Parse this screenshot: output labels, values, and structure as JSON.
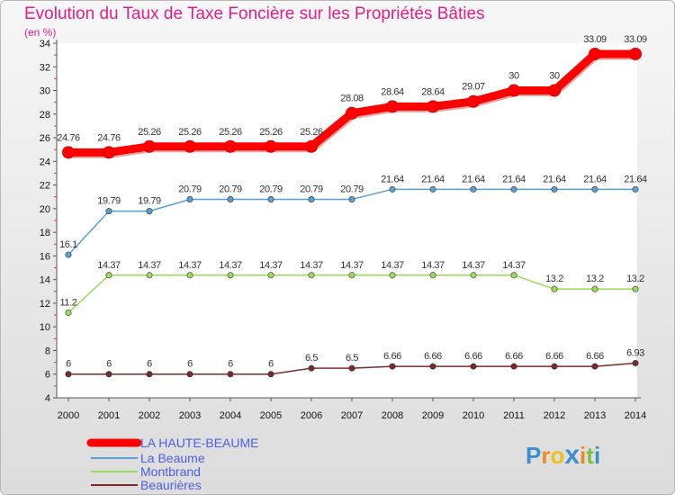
{
  "chart_data": {
    "type": "line",
    "title": "Evolution du Taux de Taxe Foncière sur les Propriétés Bâties",
    "ylabel": "(en %)",
    "xlabel": "",
    "ylim": [
      4,
      34
    ],
    "yticks": [
      4,
      6,
      8,
      10,
      12,
      14,
      16,
      18,
      20,
      22,
      24,
      26,
      28,
      30,
      32,
      34
    ],
    "x": [
      "2000",
      "2001",
      "2002",
      "2003",
      "2004",
      "2005",
      "2006",
      "2007",
      "2008",
      "2009",
      "2010",
      "2011",
      "2012",
      "2013",
      "2014"
    ],
    "grid": false,
    "legend_position": "bottom-left",
    "series": [
      {
        "name": "LA HAUTE-BEAUME",
        "color": "#ff0000",
        "values": [
          24.76,
          24.76,
          25.26,
          25.26,
          25.26,
          25.26,
          25.26,
          28.08,
          28.64,
          28.64,
          29.07,
          30,
          30,
          33.09,
          33.09
        ],
        "labels": [
          "24.76",
          "24.76",
          "25.26",
          "25.26",
          "25.26",
          "25.26",
          "25.26",
          "28.08",
          "28.64",
          "28.64",
          "29.07",
          "30",
          "30",
          "33.09",
          "33.09"
        ]
      },
      {
        "name": "La Beaume",
        "color": "#5a9fd4",
        "values": [
          16.1,
          19.79,
          19.79,
          20.79,
          20.79,
          20.79,
          20.79,
          20.79,
          21.64,
          21.64,
          21.64,
          21.64,
          21.64,
          21.64,
          21.64
        ],
        "labels": [
          "16.1",
          "19.79",
          "19.79",
          "20.79",
          "20.79",
          "20.79",
          "20.79",
          "20.79",
          "21.64",
          "21.64",
          "21.64",
          "21.64",
          "21.64",
          "21.64",
          "21.64"
        ]
      },
      {
        "name": "Montbrand",
        "color": "#99dd55",
        "values": [
          11.2,
          14.37,
          14.37,
          14.37,
          14.37,
          14.37,
          14.37,
          14.37,
          14.37,
          14.37,
          14.37,
          14.37,
          13.2,
          13.2,
          13.2
        ],
        "labels": [
          "11.2",
          "14.37",
          "14.37",
          "14.37",
          "14.37",
          "14.37",
          "14.37",
          "14.37",
          "14.37",
          "14.37",
          "14.37",
          "14.37",
          "13.2",
          "13.2",
          "13.2"
        ]
      },
      {
        "name": "Beaurières",
        "color": "#7a2a2a",
        "values": [
          6,
          6,
          6,
          6,
          6,
          6,
          6.5,
          6.5,
          6.66,
          6.66,
          6.66,
          6.66,
          6.66,
          6.66,
          6.93
        ],
        "labels": [
          "6",
          "6",
          "6",
          "6",
          "6",
          "6",
          "6.5",
          "6.5",
          "6.66",
          "6.66",
          "6.66",
          "6.66",
          "6.66",
          "6.66",
          "6.93"
        ]
      }
    ]
  },
  "logo": {
    "letters": [
      "P",
      "r",
      "o",
      "x",
      "i",
      "t",
      "i"
    ],
    "colors": [
      "#3a8fd0",
      "#f08a1c",
      "#f0c020",
      "#3a8fd0",
      "#f08a1c",
      "#80c040",
      "#3a8fd0"
    ]
  },
  "legend_colors": {
    "text": "#4b5fe0"
  }
}
